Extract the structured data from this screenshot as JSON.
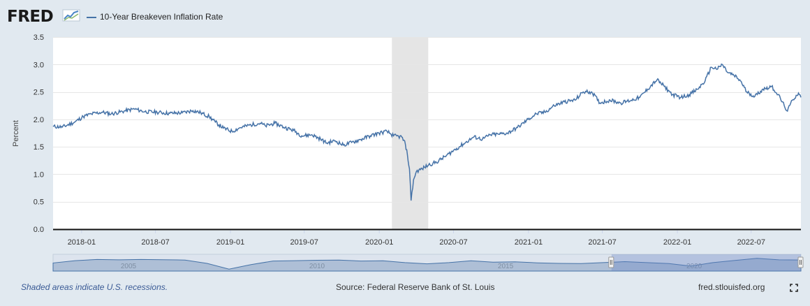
{
  "header": {
    "logo_text": "FRED",
    "logo_icon": "line-chart-icon",
    "series_label": "10-Year Breakeven Inflation Rate",
    "series_color": "#4572a7"
  },
  "footer": {
    "recession_note": "Shaded areas indicate U.S. recessions.",
    "source": "Source: Federal Reserve Bank of St. Louis",
    "site": "fred.stlouisfed.org",
    "fullscreen_icon": "fullscreen-icon"
  },
  "chart_data": {
    "type": "line",
    "ylabel": "Percent",
    "ylim": [
      0,
      3.5
    ],
    "yticks": [
      "0.0",
      "0.5",
      "1.0",
      "1.5",
      "2.0",
      "2.5",
      "3.0",
      "3.5"
    ],
    "xticks": [
      "2018-01",
      "2018-07",
      "2019-01",
      "2019-07",
      "2020-01",
      "2020-07",
      "2021-01",
      "2021-07",
      "2022-01",
      "2022-07"
    ],
    "x_range": [
      "2017-10-23",
      "2022-10-31"
    ],
    "recession": {
      "start": "2020-02-01",
      "end": "2020-04-30",
      "color": "#e5e5e5"
    },
    "grid": true,
    "series": [
      {
        "name": "10-Year Breakeven Inflation Rate",
        "color": "#4572a7",
        "x": [
          "2017-10-23",
          "2017-11-15",
          "2017-12-15",
          "2018-01-05",
          "2018-01-25",
          "2018-02-20",
          "2018-03-15",
          "2018-04-15",
          "2018-05-10",
          "2018-06-05",
          "2018-07-05",
          "2018-08-05",
          "2018-09-05",
          "2018-10-01",
          "2018-10-20",
          "2018-11-10",
          "2018-11-25",
          "2018-12-15",
          "2019-01-05",
          "2019-01-25",
          "2019-02-20",
          "2019-03-15",
          "2019-03-28",
          "2019-04-20",
          "2019-05-15",
          "2019-06-05",
          "2019-06-25",
          "2019-07-20",
          "2019-08-10",
          "2019-08-25",
          "2019-09-15",
          "2019-10-05",
          "2019-10-25",
          "2019-11-15",
          "2019-12-10",
          "2019-12-31",
          "2020-01-20",
          "2020-02-05",
          "2020-02-25",
          "2020-03-05",
          "2020-03-10",
          "2020-03-15",
          "2020-03-19",
          "2020-03-25",
          "2020-04-01",
          "2020-04-15",
          "2020-05-01",
          "2020-05-20",
          "2020-06-10",
          "2020-07-01",
          "2020-07-25",
          "2020-08-20",
          "2020-09-10",
          "2020-09-30",
          "2020-10-20",
          "2020-11-10",
          "2020-12-05",
          "2020-12-31",
          "2021-01-20",
          "2021-02-10",
          "2021-03-05",
          "2021-03-30",
          "2021-04-25",
          "2021-05-15",
          "2021-06-05",
          "2021-06-25",
          "2021-07-20",
          "2021-08-15",
          "2021-09-10",
          "2021-10-01",
          "2021-10-20",
          "2021-11-12",
          "2021-11-30",
          "2021-12-20",
          "2022-01-10",
          "2022-01-30",
          "2022-02-20",
          "2022-03-10",
          "2022-03-25",
          "2022-04-10",
          "2022-04-21",
          "2022-05-05",
          "2022-05-20",
          "2022-06-05",
          "2022-06-20",
          "2022-07-10",
          "2022-07-30",
          "2022-08-20",
          "2022-09-05",
          "2022-09-20",
          "2022-09-28",
          "2022-10-10",
          "2022-10-25",
          "2022-10-31"
        ],
        "values": [
          1.87,
          1.86,
          1.95,
          2.05,
          2.1,
          2.13,
          2.1,
          2.15,
          2.19,
          2.14,
          2.13,
          2.11,
          2.12,
          2.16,
          2.12,
          2.05,
          1.95,
          1.84,
          1.78,
          1.85,
          1.9,
          1.93,
          1.88,
          1.93,
          1.85,
          1.8,
          1.7,
          1.72,
          1.64,
          1.57,
          1.61,
          1.53,
          1.58,
          1.63,
          1.7,
          1.75,
          1.78,
          1.7,
          1.68,
          1.55,
          1.35,
          1.1,
          0.52,
          0.9,
          1.05,
          1.1,
          1.17,
          1.22,
          1.32,
          1.43,
          1.55,
          1.68,
          1.64,
          1.72,
          1.73,
          1.75,
          1.85,
          2.0,
          2.1,
          2.13,
          2.25,
          2.32,
          2.35,
          2.5,
          2.5,
          2.3,
          2.35,
          2.3,
          2.35,
          2.4,
          2.55,
          2.72,
          2.6,
          2.45,
          2.4,
          2.45,
          2.55,
          2.7,
          2.95,
          2.92,
          3.0,
          2.85,
          2.8,
          2.7,
          2.5,
          2.42,
          2.55,
          2.6,
          2.45,
          2.25,
          2.15,
          2.35,
          2.48,
          2.4
        ]
      }
    ],
    "navigator": {
      "labels": [
        "2005",
        "2010",
        "2015",
        "2020"
      ],
      "range_x": [
        "2003-01-02",
        "2022-10-31"
      ],
      "range_values": [
        1.7,
        2.3,
        2.6,
        2.5,
        2.6,
        2.55,
        2.45,
        1.6,
        0.15,
        1.3,
        2.2,
        2.3,
        2.4,
        2.45,
        2.2,
        2.25,
        1.8,
        1.5,
        1.8,
        2.25,
        1.9,
        2.0,
        1.75,
        1.6,
        1.55,
        1.8,
        2.05,
        1.8,
        1.55,
        0.9,
        1.8,
        2.35,
        2.9,
        2.5,
        2.45
      ],
      "selected_from": "2017-10-23",
      "selected_to": "2022-10-31"
    }
  }
}
